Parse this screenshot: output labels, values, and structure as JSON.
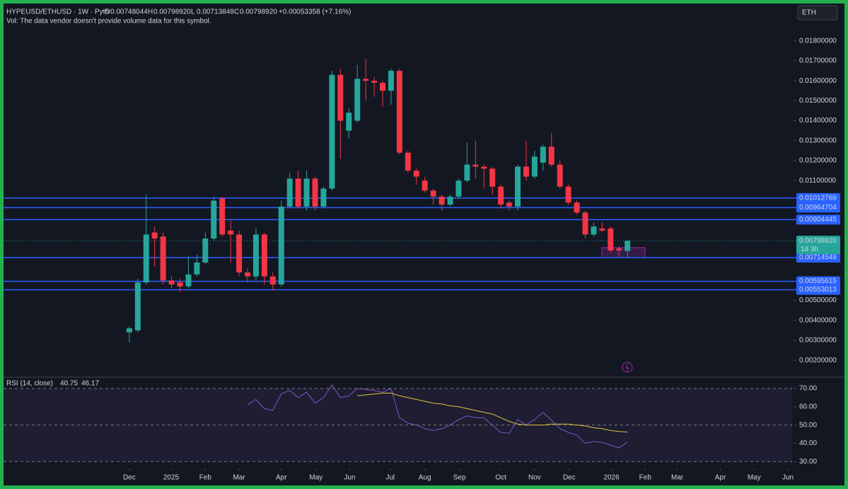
{
  "chart_data": [
    {
      "type": "candlestick",
      "title": "HYPEUSD/ETHUSD · 1W · Pyth",
      "ohlc_labels": [
        {
          "label": "O",
          "value": "0.00748044"
        },
        {
          "label": "H",
          "value": "0.00798920"
        },
        {
          "label": "L",
          "value": "0.00713848"
        },
        {
          "label": "C",
          "value": "0.00798920"
        }
      ],
      "change": "+0.00053358 (+7.16%)",
      "note": "Vol: The data vendor doesn't provide volume data for this symbol.",
      "symbol_button": "ETH",
      "open": [
        0.0034,
        0.0035,
        0.0059,
        0.0084,
        0.0082,
        0.006,
        0.0059,
        0.0057,
        0.0063,
        0.0069,
        0.0081,
        0.0101,
        0.0085,
        0.0083,
        0.0064,
        0.0062,
        0.0083,
        0.0062,
        0.0058,
        0.0097,
        0.0111,
        0.0097,
        0.0111,
        0.0097,
        0.0106,
        0.0163,
        0.0135,
        0.014,
        0.0161,
        0.016,
        0.0159,
        0.0155,
        0.0165,
        0.0124,
        0.0115,
        0.011,
        0.0105,
        0.0102,
        0.0098,
        0.0102,
        0.011,
        0.0118,
        0.0117,
        0.0116,
        0.0107,
        0.0099,
        0.0097,
        0.0117,
        0.0112,
        0.0119,
        0.0127,
        0.0118,
        0.0107,
        0.0099,
        0.0094,
        0.0083,
        0.0086,
        0.0086,
        0.0076,
        0.00748044
      ],
      "high": [
        0.0037,
        0.0061,
        0.0103,
        0.0087,
        0.0084,
        0.0062,
        0.0061,
        0.0072,
        0.0073,
        0.0084,
        0.0102,
        0.0102,
        0.009,
        0.0085,
        0.0066,
        0.0086,
        0.0084,
        0.0064,
        0.01,
        0.0114,
        0.0115,
        0.0115,
        0.0112,
        0.0107,
        0.0165,
        0.0166,
        0.0146,
        0.0168,
        0.0171,
        0.0162,
        0.016,
        0.0166,
        0.0166,
        0.0125,
        0.0116,
        0.0112,
        0.0106,
        0.0103,
        0.0103,
        0.0111,
        0.0129,
        0.013,
        0.0118,
        0.0117,
        0.0108,
        0.01,
        0.0118,
        0.013,
        0.0125,
        0.0128,
        0.0134,
        0.012,
        0.0108,
        0.01,
        0.0095,
        0.0089,
        0.0089,
        0.0087,
        0.0077,
        0.0079892
      ],
      "low": [
        0.0029,
        0.0034,
        0.0058,
        0.0067,
        0.0058,
        0.0056,
        0.0054,
        0.0056,
        0.0062,
        0.0068,
        0.008,
        0.0082,
        0.0069,
        0.0062,
        0.0059,
        0.006,
        0.0058,
        0.0055,
        0.0057,
        0.0096,
        0.0096,
        0.0095,
        0.0095,
        0.0096,
        0.0105,
        0.0121,
        0.0131,
        0.0139,
        0.015,
        0.0152,
        0.0147,
        0.0148,
        0.0123,
        0.0114,
        0.0108,
        0.0104,
        0.0098,
        0.0095,
        0.0097,
        0.0101,
        0.0109,
        0.0111,
        0.0106,
        0.0103,
        0.0096,
        0.0095,
        0.0095,
        0.011,
        0.0111,
        0.0115,
        0.0117,
        0.0106,
        0.0098,
        0.0093,
        0.0081,
        0.0082,
        0.0084,
        0.0074,
        0.0072,
        0.00713848
      ],
      "close": [
        0.0036,
        0.0059,
        0.0083,
        0.0081,
        0.006,
        0.0058,
        0.0057,
        0.0063,
        0.0069,
        0.0081,
        0.01,
        0.0083,
        0.0083,
        0.0064,
        0.0062,
        0.0083,
        0.0062,
        0.0058,
        0.0097,
        0.0111,
        0.0097,
        0.0111,
        0.0097,
        0.0106,
        0.0163,
        0.014,
        0.0144,
        0.0161,
        0.016,
        0.0159,
        0.0155,
        0.0165,
        0.0124,
        0.0115,
        0.0112,
        0.0105,
        0.0102,
        0.0098,
        0.0102,
        0.011,
        0.0118,
        0.0117,
        0.0116,
        0.0107,
        0.0098,
        0.0097,
        0.0117,
        0.0112,
        0.0122,
        0.0127,
        0.0118,
        0.0107,
        0.0099,
        0.0094,
        0.0083,
        0.0087,
        0.0085,
        0.0075,
        0.0075,
        0.0079892
      ],
      "colors": {
        "up": "#26a69a",
        "down": "#f23645",
        "level": "#2962ff"
      },
      "levels": [
        {
          "value": 0.01012769,
          "label": "0.01012769"
        },
        {
          "value": 0.00964704,
          "label": "0.00964704"
        },
        {
          "value": 0.00904445,
          "label": "0.00904445"
        },
        {
          "value": 0.00714548,
          "label": "0.00714548"
        },
        {
          "value": 0.00595615,
          "label": "0.00595615"
        },
        {
          "value": 0.00553013,
          "label": "0.00553013"
        }
      ],
      "last_price": {
        "value": 0.0079892,
        "label": "0.00798920"
      },
      "countdown": "1d 3h",
      "xlim": [
        -14.9,
        78.5
      ],
      "xticks": [
        {
          "value": 0,
          "label": "Dec"
        },
        {
          "value": 4.95,
          "label": "2025"
        },
        {
          "value": 9.0,
          "label": "Feb"
        },
        {
          "value": 13.0,
          "label": "Mar"
        },
        {
          "value": 18.0,
          "label": "Apr"
        },
        {
          "value": 22.1,
          "label": "May"
        },
        {
          "value": 26.1,
          "label": "Jun"
        },
        {
          "value": 30.9,
          "label": "Jul"
        },
        {
          "value": 35.0,
          "label": "Aug"
        },
        {
          "value": 39.1,
          "label": "Sep"
        },
        {
          "value": 44.0,
          "label": "Oct"
        },
        {
          "value": 48.0,
          "label": "Nov"
        },
        {
          "value": 52.1,
          "label": "Dec"
        },
        {
          "value": 57.1,
          "label": "2026"
        },
        {
          "value": 61.1,
          "label": "Feb"
        },
        {
          "value": 64.9,
          "label": "Mar"
        },
        {
          "value": 70.0,
          "label": "Apr"
        },
        {
          "value": 74.0,
          "label": "May"
        },
        {
          "value": 78.0,
          "label": "Jun"
        }
      ],
      "ylim": [
        0.00126,
        0.01987
      ],
      "yticks": [
        {
          "value": 0.002,
          "label": "0.00200000"
        },
        {
          "value": 0.003,
          "label": "0.00300000"
        },
        {
          "value": 0.004,
          "label": "0.00400000"
        },
        {
          "value": 0.005,
          "label": "0.00500000"
        },
        {
          "value": 0.011,
          "label": "0.01100000"
        },
        {
          "value": 0.012,
          "label": "0.01200000"
        },
        {
          "value": 0.013,
          "label": "0.01300000"
        },
        {
          "value": 0.014,
          "label": "0.01400000"
        },
        {
          "value": 0.015,
          "label": "0.01500000"
        },
        {
          "value": 0.016,
          "label": "0.01600000"
        },
        {
          "value": 0.017,
          "label": "0.01700000"
        },
        {
          "value": 0.018,
          "label": "0.01800000"
        }
      ]
    },
    {
      "type": "line",
      "title": "RSI (14, close)",
      "series": [
        {
          "name": "40.75",
          "color": "#7e57c2",
          "values": [
            null,
            null,
            null,
            null,
            null,
            null,
            null,
            null,
            null,
            null,
            null,
            null,
            null,
            null,
            61,
            64,
            59,
            58,
            67,
            69,
            65,
            68,
            62,
            65,
            72,
            65,
            66,
            70,
            69.5,
            69,
            68,
            70,
            54,
            51,
            50,
            48,
            47,
            48,
            50,
            53,
            55,
            54,
            54,
            50,
            46,
            45.5,
            53,
            50,
            53,
            57,
            52.6,
            48,
            46,
            44.5,
            40,
            41,
            40.5,
            39,
            37.5,
            40.75
          ]
        },
        {
          "name": "46.17",
          "color": "#e0c341",
          "values": [
            null,
            null,
            null,
            null,
            null,
            null,
            null,
            null,
            null,
            null,
            null,
            null,
            null,
            null,
            null,
            null,
            null,
            null,
            null,
            null,
            null,
            null,
            null,
            null,
            null,
            null,
            null,
            66,
            66.5,
            67,
            67.5,
            67.5,
            66,
            65,
            64,
            63,
            62,
            61.5,
            60.5,
            60,
            59,
            58,
            57,
            56,
            54,
            52,
            50.5,
            50,
            50,
            50,
            50.5,
            50.5,
            50.5,
            50,
            49.5,
            48.5,
            48,
            47,
            46.5,
            46.17
          ]
        }
      ],
      "levels": [
        70,
        50,
        30
      ],
      "ylim": [
        27,
        74.65
      ],
      "yticks": [
        {
          "value": 70,
          "label": "70.00"
        },
        {
          "value": 60,
          "label": "60.00"
        },
        {
          "value": 50,
          "label": "50.00"
        },
        {
          "value": 40,
          "label": "40.00"
        },
        {
          "value": 30,
          "label": "30.00"
        }
      ]
    }
  ]
}
